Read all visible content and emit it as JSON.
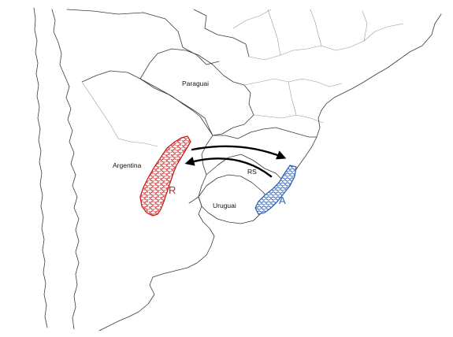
{
  "labels": {
    "paraguai": "Paraguai",
    "argentina": "Argentina",
    "uruguai": "Uruguai",
    "rs": "RS"
  },
  "regions": {
    "red": {
      "letter": "R",
      "color": "#cc1f1f"
    },
    "blue": {
      "letter": "A",
      "color": "#2f63b8"
    }
  },
  "arrows": {
    "color": "#000000"
  }
}
